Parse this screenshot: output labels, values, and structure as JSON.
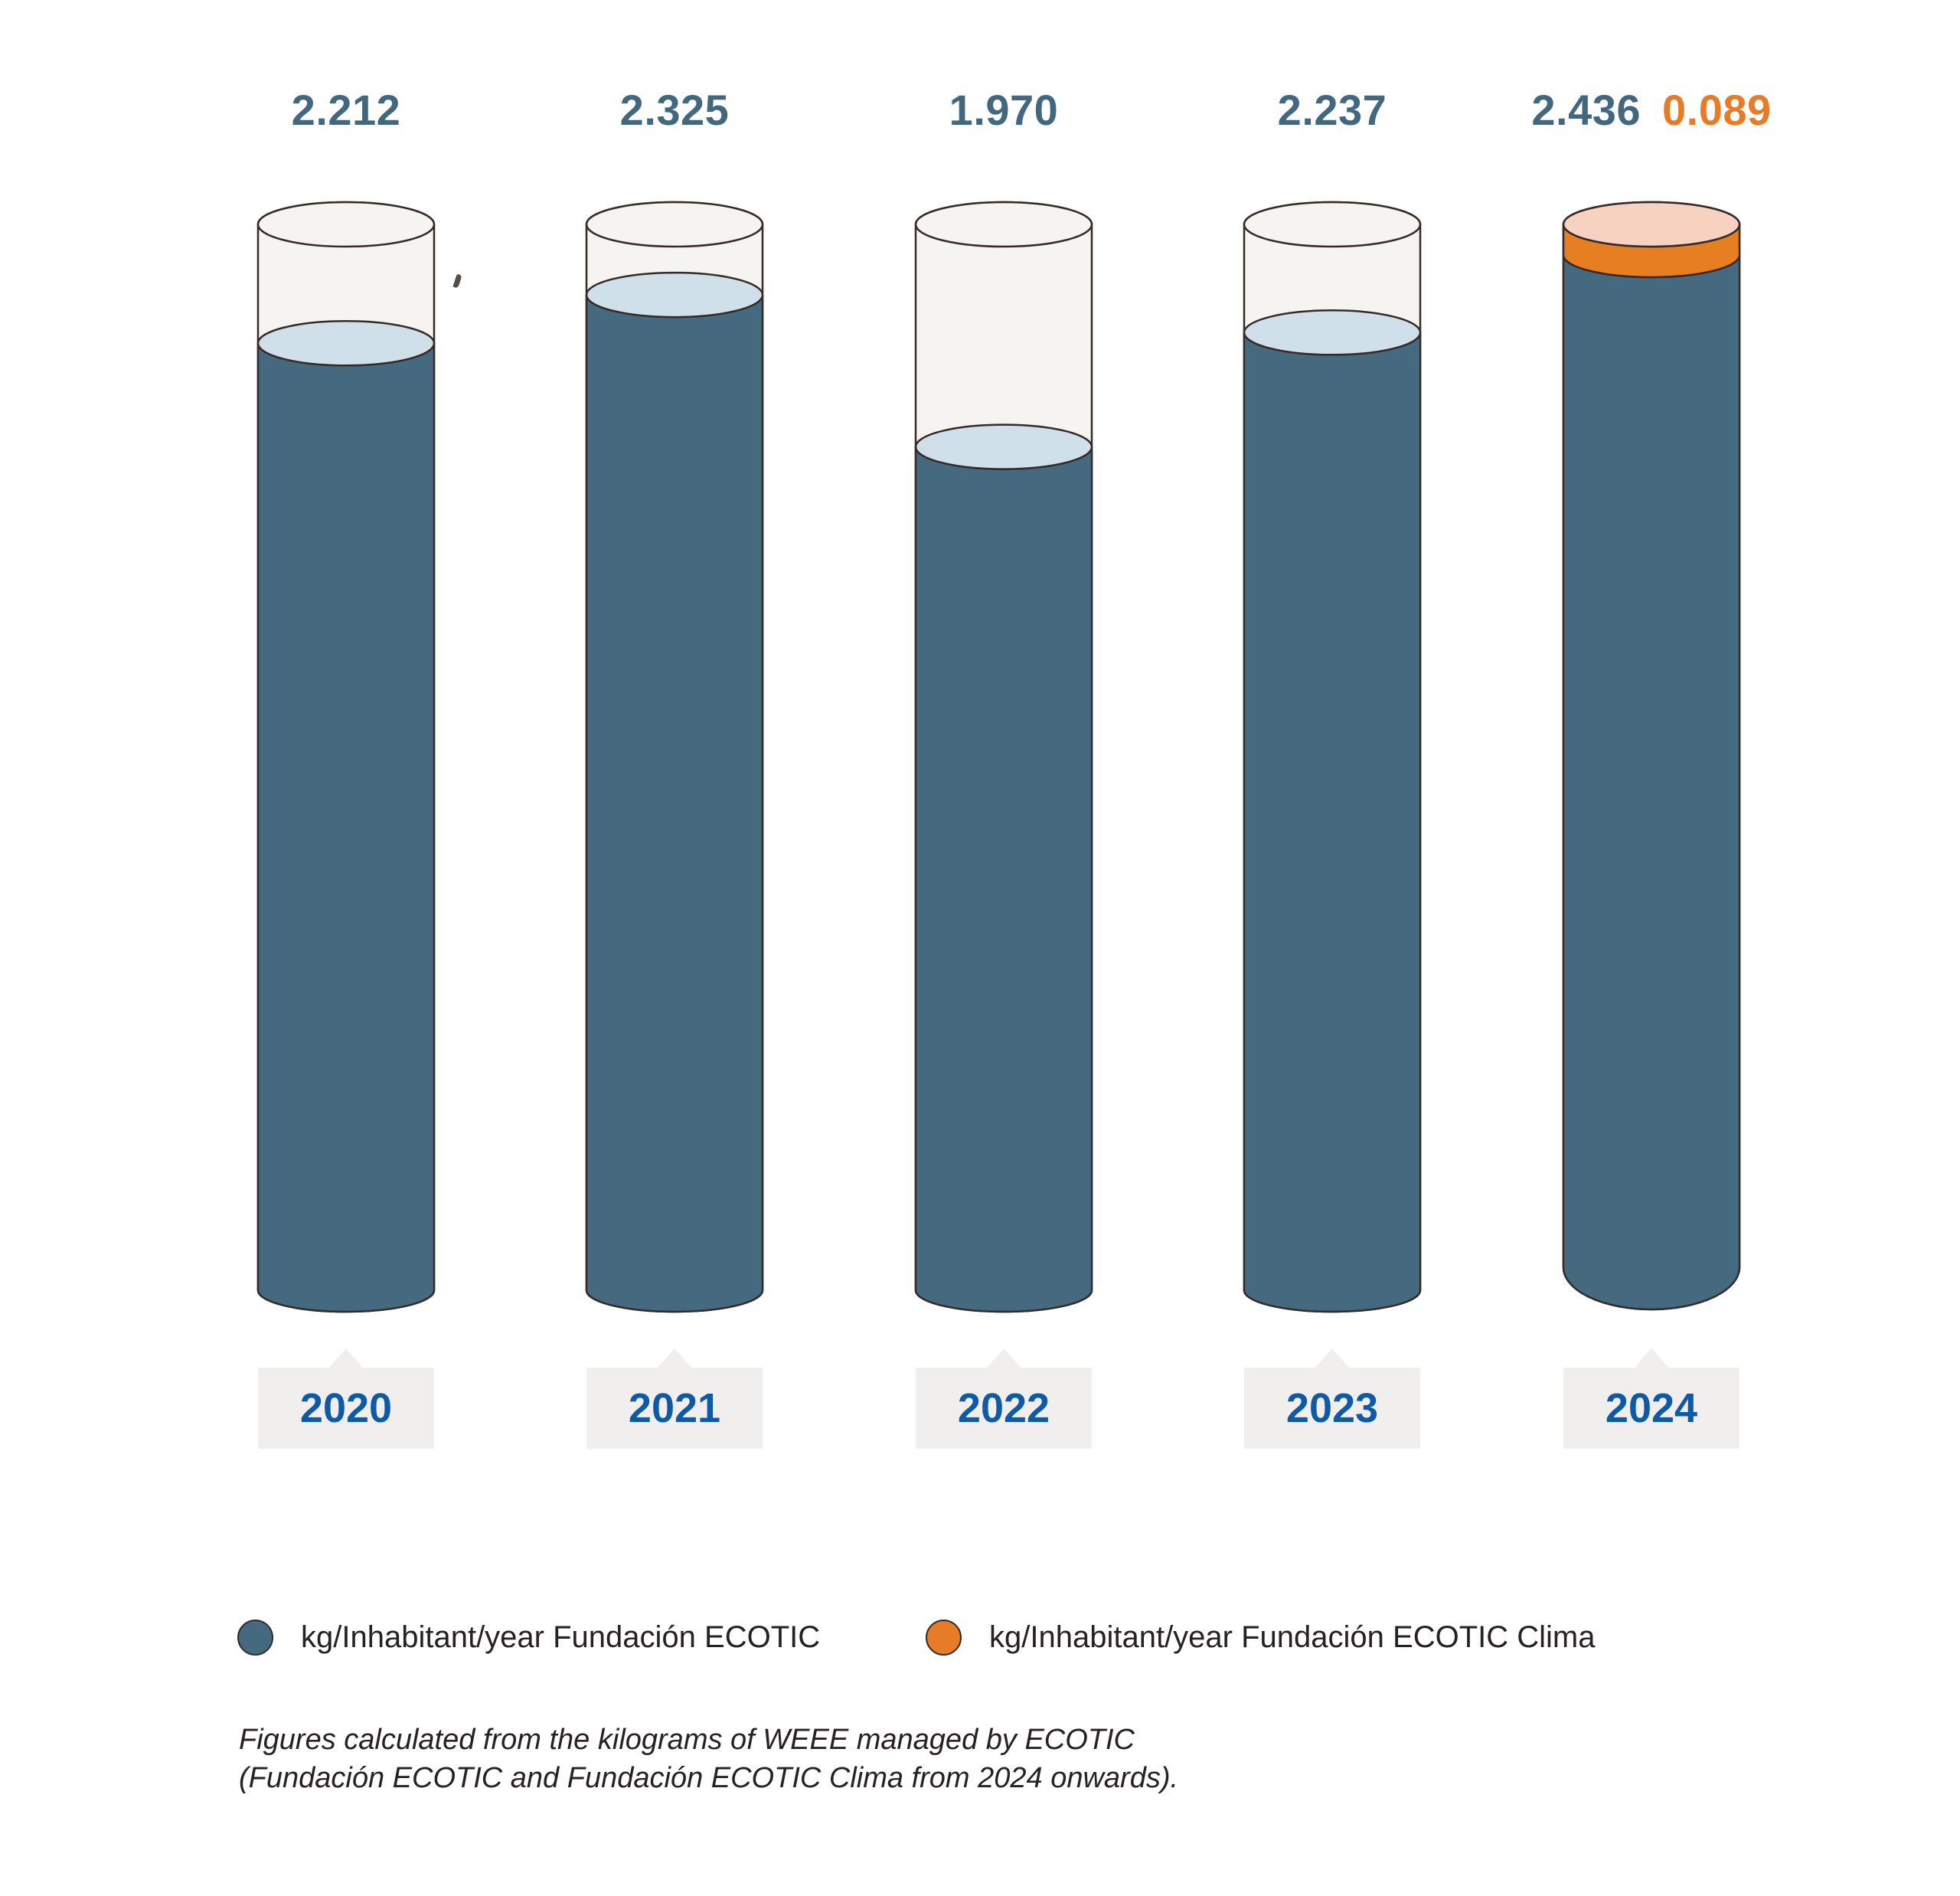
{
  "chart_data": {
    "type": "bar",
    "subtype": "cylinder-fill-pictogram",
    "title": "",
    "unit": "kg/Inhabitant/year",
    "categories": [
      "2020",
      "2021",
      "2022",
      "2023",
      "2024"
    ],
    "series": [
      {
        "name": "kg/Inhabitant/year Fundación ECOTIC",
        "color": "#456a80",
        "values": [
          2.212,
          2.325,
          1.97,
          2.237,
          2.436
        ]
      },
      {
        "name": "kg/Inhabitant/year Fundación ECOTIC Clima",
        "color": "#e87b28",
        "values": [
          0,
          0,
          0,
          0,
          0.089
        ]
      }
    ],
    "value_labels": [
      [
        "2.212"
      ],
      [
        "2.325"
      ],
      [
        "1.970"
      ],
      [
        "2.237"
      ],
      [
        "2.436",
        "0.089"
      ]
    ],
    "ylim": [
      0,
      2.49
    ],
    "grid": false,
    "legend_position": "bottom",
    "colors": {
      "cylinder_fill": "#456a80",
      "cylinder_surface": "#cfe0ea",
      "cylinder_empty": "#f5f4f1",
      "outline": "#352a27",
      "clima_band": "#e87e22",
      "clima_top": "#f8d2c1",
      "value_text": "#42687f",
      "clima_value_text": "#e87b28",
      "year_text": "#0f5aa6",
      "year_tab_bg": "#f0efee"
    }
  },
  "legend": {
    "items": [
      {
        "label": "kg/Inhabitant/year Fundación ECOTIC",
        "color": "#456a80"
      },
      {
        "label": "kg/Inhabitant/year Fundación ECOTIC Clima",
        "color": "#e87b28"
      }
    ]
  },
  "footnote": {
    "line1": "Figures calculated from the kilograms of WEEE managed by ECOTIC",
    "line2": "(Fundación ECOTIC and Fundación ECOTIC Clima from 2024 onwards)."
  }
}
